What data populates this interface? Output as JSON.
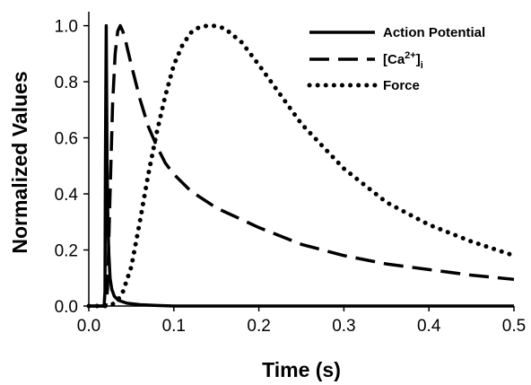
{
  "chart_data": {
    "type": "line",
    "xlabel": "Time (s)",
    "ylabel": "Normalized Values",
    "xlim": [
      0,
      0.5
    ],
    "ylim": [
      0,
      1.05
    ],
    "xticks": [
      "0.0",
      "0.1",
      "0.2",
      "0.3",
      "0.4",
      "0.5"
    ],
    "yticks": [
      "0.0",
      "0.2",
      "0.4",
      "0.6",
      "0.8",
      "1.0"
    ],
    "grid": false,
    "legend_position": "top-right",
    "series": [
      {
        "name": "Action Potential",
        "style": "solid",
        "color": "#000000",
        "x": [
          0.0,
          0.018,
          0.019,
          0.0195,
          0.0205,
          0.0215,
          0.0225,
          0.0235,
          0.025,
          0.027,
          0.03,
          0.035,
          0.045,
          0.06,
          0.08,
          0.1,
          0.2,
          0.3,
          0.4,
          0.5
        ],
        "y": [
          0.0,
          0.0,
          0.05,
          0.5,
          1.0,
          0.5,
          0.3,
          0.19,
          0.1,
          0.06,
          0.035,
          0.02,
          0.01,
          0.005,
          0.002,
          0.0,
          0.0,
          0.0,
          0.0,
          0.0
        ]
      },
      {
        "name": "[Ca2+]i",
        "label_parts": {
          "pre": "[Ca",
          "sup": "2+",
          "mid": "]",
          "sub": "i"
        },
        "style": "dashed",
        "color": "#000000",
        "x": [
          0.0,
          0.02,
          0.022,
          0.025,
          0.028,
          0.031,
          0.034,
          0.037,
          0.04,
          0.043,
          0.046,
          0.05,
          0.055,
          0.06,
          0.07,
          0.08,
          0.09,
          0.1,
          0.12,
          0.15,
          0.2,
          0.25,
          0.3,
          0.35,
          0.4,
          0.45,
          0.5
        ],
        "y": [
          0.0,
          0.0,
          0.06,
          0.4,
          0.72,
          0.9,
          0.98,
          1.0,
          0.98,
          0.95,
          0.91,
          0.86,
          0.8,
          0.74,
          0.64,
          0.57,
          0.51,
          0.47,
          0.41,
          0.35,
          0.28,
          0.22,
          0.18,
          0.15,
          0.13,
          0.11,
          0.095
        ]
      },
      {
        "name": "Force",
        "style": "dotted",
        "color": "#000000",
        "x": [
          0.0,
          0.02,
          0.025,
          0.03,
          0.035,
          0.04,
          0.05,
          0.06,
          0.07,
          0.08,
          0.09,
          0.1,
          0.11,
          0.12,
          0.13,
          0.14,
          0.145,
          0.15,
          0.16,
          0.18,
          0.2,
          0.25,
          0.3,
          0.35,
          0.4,
          0.45,
          0.5
        ],
        "y": [
          0.0,
          0.0,
          0.002,
          0.01,
          0.025,
          0.05,
          0.14,
          0.3,
          0.47,
          0.62,
          0.75,
          0.86,
          0.93,
          0.975,
          0.995,
          1.0,
          1.0,
          0.998,
          0.99,
          0.94,
          0.86,
          0.65,
          0.49,
          0.37,
          0.29,
          0.23,
          0.18
        ]
      }
    ]
  }
}
